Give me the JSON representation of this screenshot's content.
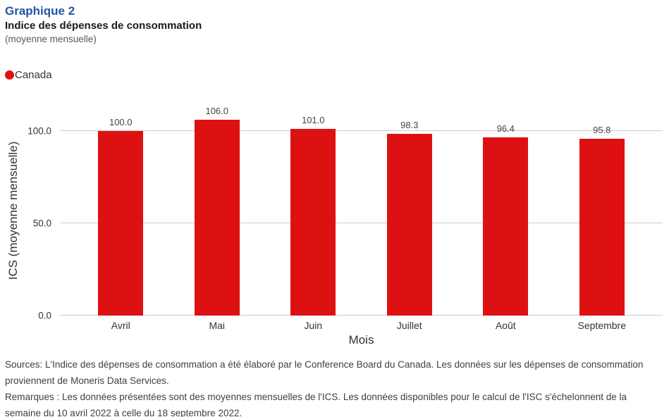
{
  "header": {
    "title": "Graphique 2",
    "subtitle": "Indice des dépenses de consommation",
    "note": "(moyenne mensuelle)"
  },
  "legend": {
    "items": [
      {
        "label": "Canada",
        "color": "#dd1111",
        "marker": "circle-icon"
      }
    ]
  },
  "chart_data": {
    "type": "bar",
    "title": "Indice des dépenses de consommation (moyenne mensuelle)",
    "categories": [
      "Avril",
      "Mai",
      "Juin",
      "Juillet",
      "Août",
      "Septembre"
    ],
    "series": [
      {
        "name": "Canada",
        "color": "#dd1111",
        "values": [
          100.0,
          106.0,
          101.0,
          98.3,
          96.4,
          95.8
        ]
      }
    ],
    "value_labels": [
      "100.0",
      "106.0",
      "101.0",
      "98.3",
      "96.4",
      "95.8"
    ],
    "xlabel": "Mois",
    "ylabel": "ICS (moyenne mensuelle)",
    "yticks": [
      {
        "value": 0,
        "label": "0.0"
      },
      {
        "value": 50,
        "label": "50.0"
      },
      {
        "value": 100,
        "label": "100.0"
      }
    ],
    "ylim": [
      0,
      114
    ],
    "grid": true,
    "legend_position": "top-left"
  },
  "footer": {
    "sources": "Sources: L'Indice des dépenses de consommation a été élaboré par le Conference Board du Canada. Les données sur les dépenses de consommation proviennent de Moneris Data Services.",
    "remarks": "Remarques : Les données présentées sont des moyennes mensuelles de l'ICS. Les données disponibles pour le calcul de l'ISC s'échelonnent de la semaine du 10 avril 2022 à celle du 18 septembre 2022."
  },
  "colors": {
    "title_blue": "#2453a6",
    "bar_red": "#dd1111",
    "gridline": "#cccccc"
  }
}
